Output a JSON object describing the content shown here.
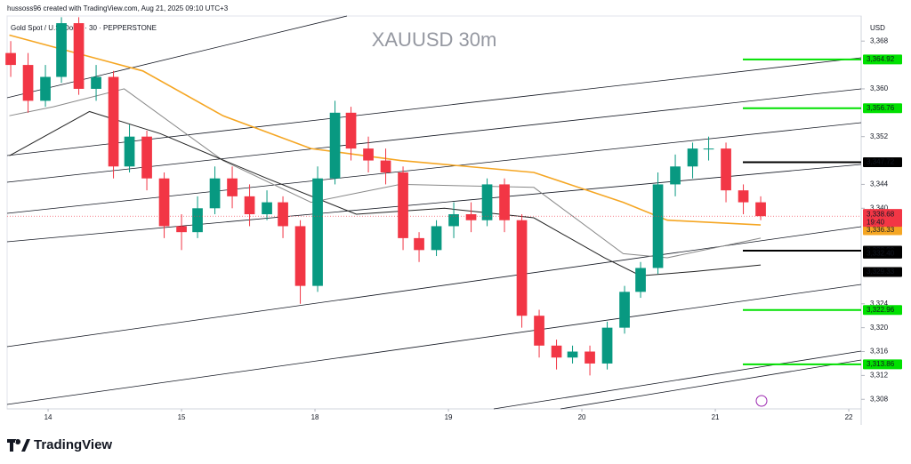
{
  "chart_data": {
    "type": "candlestick",
    "author_line": "hussoss96 created with TradingView.com, Aug 21, 2025 09:10 UTC+3",
    "title": "Gold Spot / U.S. Dollar · 30 · PEPPERSTONE",
    "watermark": "XAUUSD 30m",
    "currency": "USD",
    "brand": "TradingView",
    "up_color": "#089981",
    "down_color": "#f23645",
    "xlim": [
      -0.307,
      6.093
    ],
    "xticks": [
      {
        "value": 0,
        "label": "14"
      },
      {
        "value": 1,
        "label": "15"
      },
      {
        "value": 2,
        "label": "18"
      },
      {
        "value": 3,
        "label": "19"
      },
      {
        "value": 4,
        "label": "20"
      },
      {
        "value": 5,
        "label": "21"
      },
      {
        "value": 6,
        "label": "22"
      }
    ],
    "ylim": [
      3306.4,
      3372.2
    ],
    "yticks": [
      {
        "value": 3308,
        "label": "3,308"
      },
      {
        "value": 3312,
        "label": "3,312"
      },
      {
        "value": 3316,
        "label": "3,316"
      },
      {
        "value": 3320,
        "label": "3,320"
      },
      {
        "value": 3324,
        "label": "3,324"
      },
      {
        "value": 3340,
        "label": "3,340"
      },
      {
        "value": 3344,
        "label": "3,344"
      },
      {
        "value": 3352,
        "label": "3,352"
      },
      {
        "value": 3360,
        "label": "3,360"
      },
      {
        "value": 3368,
        "label": "3,368"
      }
    ],
    "x": [
      -0.28,
      -0.15,
      -0.02,
      0.1,
      0.23,
      0.36,
      0.49,
      0.61,
      0.74,
      0.87,
      1.0,
      1.12,
      1.25,
      1.38,
      1.51,
      1.64,
      1.76,
      1.89,
      2.02,
      2.15,
      2.27,
      2.4,
      2.53,
      2.66,
      2.78,
      2.91,
      3.04,
      3.17,
      3.29,
      3.42,
      3.55,
      3.68,
      3.81,
      3.93,
      4.06,
      4.19,
      4.32,
      4.44,
      4.57,
      4.7,
      4.83,
      4.95,
      5.08,
      5.21,
      5.34
    ],
    "open": [
      3366,
      3364,
      3358,
      3362,
      3371,
      3360,
      3362,
      3347,
      3352,
      3345,
      3337,
      3336,
      3340,
      3345,
      3342,
      3339,
      3341,
      3337,
      3327,
      3345,
      3356,
      3350,
      3348,
      3346,
      3335,
      3333,
      3337,
      3339,
      3338,
      3344,
      3338,
      3322,
      3317,
      3315,
      3316,
      3314,
      3320,
      3326,
      3330,
      3344,
      3347,
      3350,
      3350,
      3343,
      3341
    ],
    "high": [
      3368,
      3366,
      3364,
      3372,
      3372,
      3364,
      3363,
      3354,
      3353,
      3346,
      3339,
      3342,
      3347,
      3347,
      3344,
      3343,
      3342,
      3338,
      3347,
      3358,
      3357,
      3352,
      3350,
      3347,
      3336,
      3338,
      3341,
      3341,
      3345,
      3345,
      3339,
      3323,
      3318,
      3317,
      3317,
      3321,
      3327,
      3331,
      3346,
      3349,
      3351,
      3352,
      3351,
      3344,
      3342
    ],
    "low": [
      3362,
      3356,
      3357,
      3361,
      3359,
      3358,
      3345,
      3346,
      3343,
      3335,
      3333,
      3335,
      3339,
      3340,
      3337,
      3338,
      3335,
      3324,
      3326,
      3344,
      3348,
      3346,
      3344,
      3333,
      3331,
      3332,
      3335,
      3336,
      3337,
      3336,
      3320,
      3315,
      3313,
      3314,
      3312,
      3313,
      3319,
      3325,
      3329,
      3342,
      3345,
      3348,
      3341,
      3339,
      3338
    ],
    "close": [
      3364,
      3358,
      3362,
      3371,
      3360,
      3362,
      3347,
      3352,
      3345,
      3337,
      3336,
      3340,
      3345,
      3342,
      3339,
      3341,
      3337,
      3327,
      3345,
      3356,
      3350,
      3348,
      3346,
      3335,
      3333,
      3337,
      3339,
      3338,
      3344,
      3338,
      3322,
      3317,
      3315,
      3316,
      3314,
      3320,
      3326,
      3330,
      3344,
      3347,
      3350,
      3350,
      3343,
      3341,
      3338.68
    ],
    "moving_averages": [
      {
        "color": "#f5a623",
        "x": [
          -0.29,
          0.71,
          1.31,
          1.97,
          2.64,
          3.64,
          4.31,
          4.64,
          5.34
        ],
        "values": [
          3369,
          3363,
          3355.5,
          3350,
          3348,
          3346,
          3341,
          3338,
          3337.2
        ]
      },
      {
        "color": "#888888",
        "x": [
          -0.29,
          0.04,
          0.57,
          1.31,
          1.97,
          2.64,
          3.64,
          4.31,
          4.64,
          5.34
        ],
        "values": [
          3355.5,
          3357,
          3360,
          3348,
          3341,
          3344,
          3343.5,
          3332.4,
          3331.7,
          3335
        ]
      },
      {
        "color": "#222222",
        "x": [
          -0.29,
          0.31,
          0.84,
          1.64,
          2.31,
          2.97,
          3.64,
          4.17,
          4.44,
          4.84,
          5.34
        ],
        "values": [
          3348.8,
          3356.2,
          3352.5,
          3345,
          3339,
          3340,
          3338.4,
          3331.7,
          3328.7,
          3329.4,
          3330.5
        ]
      }
    ],
    "levels": [
      {
        "value": 3364.92,
        "label": "3,364.92",
        "color": "#00e000",
        "line": true
      },
      {
        "value": 3356.76,
        "label": "3,356.76",
        "color": "#00e000",
        "line": true
      },
      {
        "value": 3347.72,
        "label": "3,347.72",
        "color": "#000000",
        "line": true
      },
      {
        "value": 3336.33,
        "label": "3,336.33",
        "color": "#f5a623",
        "line": false
      },
      {
        "value": 3332.9,
        "label": "3,332.90",
        "color": "#000000",
        "line": true
      },
      {
        "value": 3332.4,
        "label": "3,332.40",
        "color": "#000000",
        "line": false
      },
      {
        "value": 3329.33,
        "label": "3,329.33",
        "color": "#000000",
        "line": false
      },
      {
        "value": 3322.96,
        "label": "3,322.96",
        "color": "#00e000",
        "line": true
      },
      {
        "value": 3313.86,
        "label": "3,313.86",
        "color": "#00e000",
        "line": true
      }
    ],
    "last_price": {
      "value": 3338.68,
      "label": "3,338.68",
      "countdown": "19:40",
      "color": "#f23645"
    }
  }
}
